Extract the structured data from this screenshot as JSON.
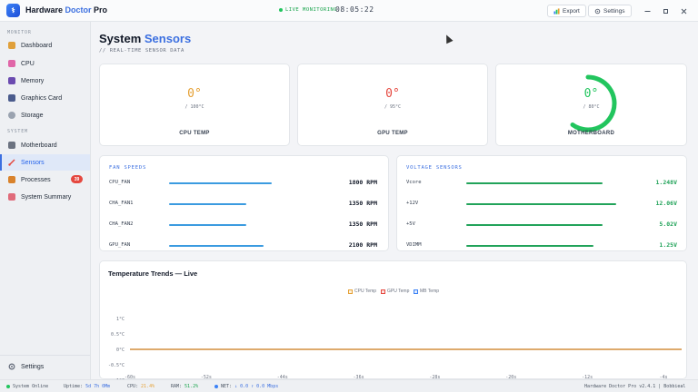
{
  "app": {
    "title_main": "Hardware ",
    "title_accent": "Doctor",
    "title_end": " Pro",
    "logo_glyph": "⚕",
    "live_label": "LIVE MONITORING",
    "clock": "08:05:22",
    "export_label": "Export",
    "settings_label": "Settings"
  },
  "sidebar": {
    "monitor_label": "MONITOR",
    "system_label": "SYSTEM",
    "items": [
      {
        "label": "Dashboard",
        "icon": "dashboard-icon",
        "color": "#e0a03a"
      },
      {
        "label": "CPU",
        "icon": "cpu-icon",
        "color": "#e066a8"
      },
      {
        "label": "Memory",
        "icon": "memory-icon",
        "color": "#6b4bb0"
      },
      {
        "label": "Graphics Card",
        "icon": "gpu-icon",
        "color": "#4a5b8c"
      },
      {
        "label": "Storage",
        "icon": "storage-icon",
        "color": "#9aa3b0"
      },
      {
        "label": "Motherboard",
        "icon": "motherboard-icon",
        "color": "#6b7280"
      },
      {
        "label": "Sensors",
        "icon": "sensors-icon",
        "color": "#e5483f"
      },
      {
        "label": "Processes",
        "icon": "processes-icon",
        "color": "#d9822b",
        "badge": "39"
      },
      {
        "label": "System Summary",
        "icon": "summary-icon",
        "color": "#e06b7a"
      }
    ],
    "settings_label": "Settings"
  },
  "page": {
    "title_main": "System ",
    "title_accent": "Sensors",
    "subtitle": "// REAL-TIME SENSOR DATA"
  },
  "temps": [
    {
      "label": "CPU TEMP",
      "value": "0°",
      "max": "/ 100°C",
      "color": "#e5a033"
    },
    {
      "label": "GPU TEMP",
      "value": "0°",
      "max": "/ 95°C",
      "color": "#e5483f"
    },
    {
      "label": "MOTHERBOARD",
      "value": "0°",
      "max": "/ 80°C",
      "color": "#22c55e"
    }
  ],
  "fans": {
    "title": "FAN SPEEDS",
    "items": [
      {
        "label": "CPU_FAN",
        "value": "1800 RPM",
        "fraction": 0.73
      },
      {
        "label": "CHA_FAN1",
        "value": "1350 RPM",
        "fraction": 0.55
      },
      {
        "label": "CHA_FAN2",
        "value": "1350 RPM",
        "fraction": 0.55
      },
      {
        "label": "GPU_FAN",
        "value": "2100 RPM",
        "fraction": 0.67
      }
    ],
    "color": "#3b9be0"
  },
  "voltages": {
    "title": "VOLTAGE SENSORS",
    "items": [
      {
        "label": "Vcore",
        "value": "1.248V",
        "fraction": 0.78
      },
      {
        "label": "+12V",
        "value": "12.06V",
        "fraction": 0.86
      },
      {
        "label": "+5V",
        "value": "5.02V",
        "fraction": 0.78
      },
      {
        "label": "VDIMM",
        "value": "1.25V",
        "fraction": 0.73
      }
    ],
    "color": "#22a35a"
  },
  "chart_data": {
    "type": "line",
    "title": "Temperature Trends — Live",
    "x": [
      "-60s",
      "-52s",
      "-44s",
      "-36s",
      "-28s",
      "-20s",
      "-12s",
      "-4s"
    ],
    "ylim": [
      -1,
      1
    ],
    "yticks": [
      "1°C",
      "0.5°C",
      "0°C",
      "-0.5°C",
      "-1°C"
    ],
    "series": [
      {
        "name": "CPU Temp",
        "values": [
          0,
          0,
          0,
          0,
          0,
          0,
          0,
          0
        ],
        "color": "#e5a033"
      },
      {
        "name": "GPU Temp",
        "values": [
          0,
          0,
          0,
          0,
          0,
          0,
          0,
          0
        ],
        "color": "#e5483f"
      },
      {
        "name": "MB Temp",
        "values": [
          0,
          0,
          0,
          0,
          0,
          0,
          0,
          0
        ],
        "color": "#3b82f6"
      }
    ],
    "grid": false,
    "legend": "top-center"
  },
  "status": {
    "online": "System Online",
    "uptime_label": "Uptime:",
    "uptime": "5d 7h 0Mm",
    "cpu_label": "CPU:",
    "cpu": "21.4%",
    "ram_label": "RAM:",
    "ram": "51.2%",
    "net_label": "NET:",
    "net": "↓ 0.0 ↑ 0.0 Mbps",
    "version": "Hardware Doctor Pro v2.4.1",
    "sep": "|",
    "user": "Bobbieal"
  }
}
